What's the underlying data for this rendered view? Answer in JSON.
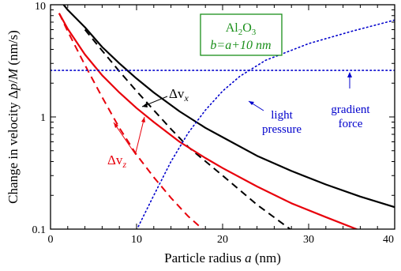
{
  "chart_data": {
    "type": "line",
    "y_scale": "log",
    "xlim": [
      0,
      40
    ],
    "ylim": [
      0.1,
      10
    ],
    "grid": false,
    "x_ticks": [
      "0",
      "10",
      "20",
      "30",
      "40"
    ],
    "y_ticks": [
      "0.1",
      "1",
      "10"
    ],
    "xlabel": {
      "prefix": "Particle radius ",
      "var": "a",
      "suffix": " (nm)"
    },
    "ylabel": {
      "prefix": "Change in velocity Δ",
      "num": "p",
      "sep": "/",
      "den": "M",
      "suffix": " (nm/s)"
    },
    "inset": {
      "line1_base": "Al",
      "line1_sub1": "2",
      "line1_mid": "O",
      "line1_sub2": "3",
      "line2": "b=a+10 nm",
      "border_color": "#1a8f1a"
    },
    "annotations": {
      "dvx_base": "Δv",
      "dvx_sub": "x",
      "dvz_base": "Δv",
      "dvz_sub": "z",
      "light_1": "light",
      "light_2": "pressure",
      "grad_1": "gradient",
      "grad_2": "force"
    },
    "series": [
      {
        "key": "dvx_solid",
        "color": "#000000",
        "dash": "solid",
        "points": [
          [
            1,
            11.2
          ],
          [
            2,
            9.0
          ],
          [
            4,
            6.3
          ],
          [
            6,
            4.2
          ],
          [
            8,
            3.0
          ],
          [
            10,
            2.2
          ],
          [
            12,
            1.65
          ],
          [
            15,
            1.12
          ],
          [
            18,
            0.8
          ],
          [
            20,
            0.66
          ],
          [
            24,
            0.45
          ],
          [
            28,
            0.33
          ],
          [
            32,
            0.25
          ],
          [
            36,
            0.195
          ],
          [
            40,
            0.157
          ]
        ]
      },
      {
        "key": "dvx_dashed",
        "color": "#000000",
        "dash": "dashed",
        "points": [
          [
            4,
            6.0
          ],
          [
            6,
            3.9
          ],
          [
            8,
            2.55
          ],
          [
            10,
            1.7
          ],
          [
            12,
            1.15
          ],
          [
            14,
            0.78
          ],
          [
            16,
            0.54
          ],
          [
            20,
            0.3
          ],
          [
            24,
            0.165
          ],
          [
            28,
            0.098
          ]
        ]
      },
      {
        "key": "dvz_solid",
        "color": "#e8000b",
        "dash": "solid",
        "points": [
          [
            1,
            8.4
          ],
          [
            2,
            6.1
          ],
          [
            4,
            3.6
          ],
          [
            6,
            2.35
          ],
          [
            8,
            1.65
          ],
          [
            10,
            1.2
          ],
          [
            12,
            0.9
          ],
          [
            15,
            0.6
          ],
          [
            18,
            0.43
          ],
          [
            20,
            0.35
          ],
          [
            24,
            0.24
          ],
          [
            28,
            0.17
          ],
          [
            32,
            0.128
          ],
          [
            36,
            0.097
          ]
        ]
      },
      {
        "key": "dvz_dashed",
        "color": "#e8000b",
        "dash": "dashed",
        "points": [
          [
            1,
            8.4
          ],
          [
            2,
            5.8
          ],
          [
            4,
            2.9
          ],
          [
            6,
            1.5
          ],
          [
            8,
            0.8
          ],
          [
            10,
            0.46
          ],
          [
            12,
            0.29
          ],
          [
            14,
            0.19
          ],
          [
            16,
            0.13
          ],
          [
            18.5,
            0.088
          ]
        ]
      },
      {
        "key": "light_pressure",
        "color": "#0000cc",
        "dash": "dotted",
        "points": [
          [
            10,
            0.098
          ],
          [
            12,
            0.2
          ],
          [
            14,
            0.4
          ],
          [
            16,
            0.72
          ],
          [
            18,
            1.15
          ],
          [
            20,
            1.7
          ],
          [
            22,
            2.3
          ],
          [
            25,
            3.2
          ],
          [
            30,
            4.5
          ],
          [
            35,
            5.8
          ],
          [
            40,
            7.3
          ]
        ]
      },
      {
        "key": "gradient_force",
        "color": "#0000cc",
        "dash": "dotted",
        "points": [
          [
            0,
            2.6
          ],
          [
            40,
            2.6
          ]
        ]
      }
    ]
  }
}
